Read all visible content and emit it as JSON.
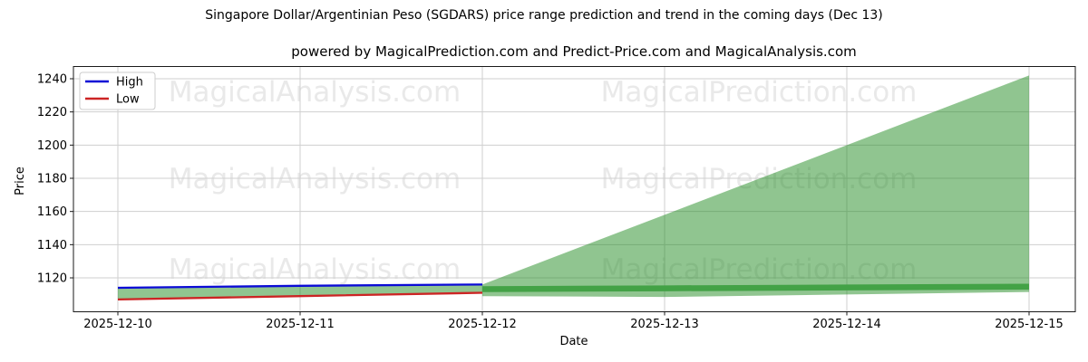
{
  "title": "Singapore Dollar/Argentinian Peso (SGDARS) price range prediction and trend in the coming days (Dec 13)",
  "subtitle": "powered by MagicalPrediction.com and Predict-Price.com and MagicalAnalysis.com",
  "watermarks": [
    "MagicalAnalysis.com",
    "MagicalPrediction.com"
  ],
  "legend": {
    "position": "upper left",
    "items": [
      {
        "label": "High",
        "color": "#0b0bd6"
      },
      {
        "label": "Low",
        "color": "#cc2424"
      }
    ]
  },
  "chart_data": {
    "type": "line",
    "title": "Singapore Dollar/Argentinian Peso (SGDARS) price range prediction and trend in the coming days (Dec 13)",
    "xlabel": "Date",
    "ylabel": "Price",
    "x_categories": [
      "2025-12-10",
      "2025-12-11",
      "2025-12-12",
      "2025-12-13",
      "2025-12-14",
      "2025-12-15"
    ],
    "y_ticks": [
      1120,
      1140,
      1160,
      1180,
      1200,
      1220,
      1240
    ],
    "ylim": [
      1099.5,
      1247.5
    ],
    "grid": true,
    "grid_color": "#cfcfcf",
    "background": "#ffffff",
    "series": [
      {
        "name": "High",
        "type": "line",
        "color": "#0b0bd6",
        "width": 2.3,
        "x": [
          0,
          1,
          2
        ],
        "values": [
          1114,
          1115.2,
          1116
        ]
      },
      {
        "name": "Low",
        "type": "line",
        "color": "#cc2424",
        "width": 2.3,
        "x": [
          0,
          1,
          2
        ],
        "values": [
          1107,
          1109,
          1111
        ]
      },
      {
        "name": "historical-range-band",
        "type": "band",
        "color": "rgba(34,139,34,0.5)",
        "x": [
          0,
          1,
          2
        ],
        "upper": [
          1114,
          1115.2,
          1116
        ],
        "lower": [
          1107,
          1109,
          1111
        ]
      },
      {
        "name": "prediction-fan",
        "type": "band",
        "color": "rgba(34,139,34,0.5)",
        "x": [
          2,
          3,
          4,
          5
        ],
        "upper": [
          1116,
          1158,
          1200,
          1242
        ],
        "lower": [
          1109,
          1108.5,
          1110,
          1111.5
        ]
      },
      {
        "name": "predicted-trend",
        "type": "line",
        "color": "#43a246",
        "width": 6.5,
        "x": [
          2,
          3,
          4,
          5
        ],
        "values": [
          1113.2,
          1113.7,
          1114.2,
          1114.7
        ]
      }
    ]
  }
}
